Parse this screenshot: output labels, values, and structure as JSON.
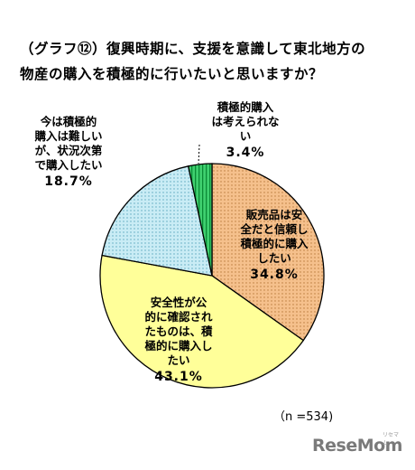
{
  "title": {
    "line1": "（グラフ⑫）復興時期に、支援を意識して東北地方の",
    "line2": "物産の購入を積極的に行いたいと思いますか？"
  },
  "note": "（n =534)",
  "brand": {
    "name": "ReseMom",
    "sub": "リセマム"
  },
  "chart_data": {
    "type": "pie",
    "n": 534,
    "slices": [
      {
        "label": "販売品は安全だと信頼し積極的に購入したい",
        "lines": [
          "販売品は安",
          "全だと信頼し",
          "積極的に購入",
          "したい"
        ],
        "value": 34.8,
        "pct": "34.8%",
        "color": "#f5c08c",
        "pattern": "dots"
      },
      {
        "label": "安全性が公的に確認されたものは、積極的に購入したい",
        "lines": [
          "安全性が公",
          "的に確認され",
          "たものは、積",
          "極的に購入し",
          "たい"
        ],
        "value": 43.1,
        "pct": "43.1%",
        "color": "#ffff99",
        "pattern": "none"
      },
      {
        "label": "今は積極的購入は難しいが、状況次第で購入したい",
        "lines": [
          "今は積極的",
          "購入は難しい",
          "が、状況次第",
          "で購入したい"
        ],
        "value": 18.7,
        "pct": "18.7%",
        "color": "#b8e6f2",
        "pattern": "dots"
      },
      {
        "label": "積極的購入は考えられない",
        "lines": [
          "積極的購入",
          "は考えられな",
          "い"
        ],
        "value": 3.4,
        "pct": "3.4%",
        "color": "#33cc66",
        "pattern": "stripes"
      }
    ]
  }
}
